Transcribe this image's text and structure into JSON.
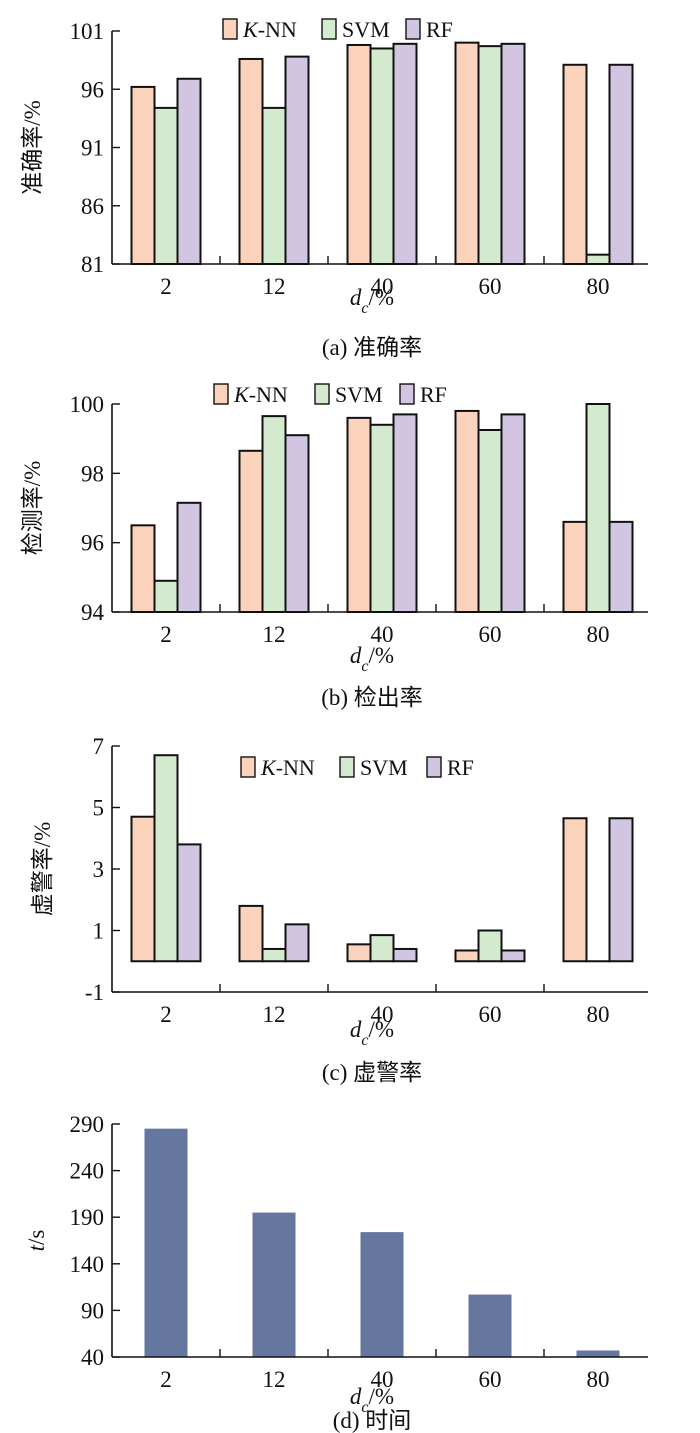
{
  "chart_data": [
    {
      "type": "bar",
      "caption": "(a) 准确率",
      "ylabel": "准确率/%",
      "xlabel": "d_c/%",
      "ylim": [
        81,
        101
      ],
      "yticks": [
        81,
        86,
        91,
        96,
        101
      ],
      "categories": [
        "2",
        "12",
        "40",
        "60",
        "80"
      ],
      "legend_placement": "top-center",
      "series": [
        {
          "name": "K-NN",
          "values": [
            96.2,
            98.6,
            99.8,
            100.0,
            98.1
          ]
        },
        {
          "name": "SVM",
          "values": [
            94.4,
            94.4,
            99.5,
            99.7,
            81.8
          ]
        },
        {
          "name": "RF",
          "values": [
            96.9,
            98.8,
            99.9,
            99.9,
            98.1
          ]
        }
      ]
    },
    {
      "type": "bar",
      "caption": "(b) 检出率",
      "ylabel": "检测率/%",
      "xlabel": "d_c/%",
      "ylim": [
        94,
        100
      ],
      "yticks": [
        94,
        96,
        98,
        100
      ],
      "categories": [
        "2",
        "12",
        "40",
        "60",
        "80"
      ],
      "legend_placement": "top-center",
      "series": [
        {
          "name": "K-NN",
          "values": [
            96.5,
            98.65,
            99.6,
            99.8,
            96.6
          ]
        },
        {
          "name": "SVM",
          "values": [
            94.9,
            99.65,
            99.4,
            99.25,
            100.0
          ]
        },
        {
          "name": "RF",
          "values": [
            97.15,
            99.1,
            99.7,
            99.7,
            96.6
          ]
        }
      ]
    },
    {
      "type": "bar",
      "caption": "(c) 虚警率",
      "ylabel": "虚警率/%",
      "xlabel": "d_c/%",
      "ylim": [
        -1,
        7
      ],
      "yticks": [
        -1,
        1,
        3,
        5,
        7
      ],
      "categories": [
        "2",
        "12",
        "40",
        "60",
        "80"
      ],
      "legend_placement": "top-center",
      "series": [
        {
          "name": "K-NN",
          "values": [
            4.7,
            1.8,
            0.55,
            0.35,
            4.65
          ]
        },
        {
          "name": "SVM",
          "values": [
            6.7,
            0.4,
            0.85,
            1.0,
            0.0
          ]
        },
        {
          "name": "RF",
          "values": [
            3.8,
            1.2,
            0.4,
            0.35,
            4.65
          ]
        }
      ]
    },
    {
      "type": "bar",
      "caption": "(d) 时间",
      "ylabel": "t/s",
      "xlabel": "d_c/%",
      "ylim": [
        40,
        290
      ],
      "yticks": [
        40,
        90,
        140,
        190,
        240,
        290
      ],
      "categories": [
        "2",
        "12",
        "40",
        "60",
        "80"
      ],
      "series": [
        {
          "values": [
            285,
            195,
            174,
            107,
            47
          ]
        }
      ]
    }
  ],
  "colors": {
    "knn": "#fbd3bd",
    "svm": "#d3eace",
    "rf": "#d2c5e1",
    "time": "#65769f",
    "axis": "#111111"
  }
}
